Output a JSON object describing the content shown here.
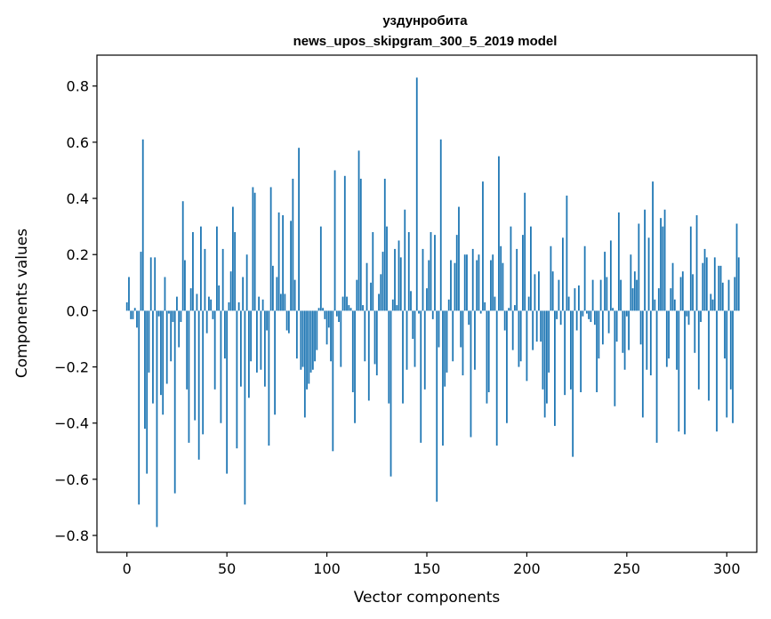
{
  "chart_data": {
    "type": "bar",
    "title": "уздунробита",
    "subtitle": "news_upos_skipgram_300_5_2019 model",
    "xlabel": "Vector components",
    "ylabel": "Components values",
    "xlim": [
      -15,
      315
    ],
    "ylim": [
      -0.86,
      0.91
    ],
    "x_ticks": [
      0,
      50,
      100,
      150,
      200,
      250,
      300
    ],
    "x_tick_labels": [
      "0",
      "50",
      "100",
      "150",
      "200",
      "250",
      "300"
    ],
    "y_ticks": [
      -0.8,
      -0.6,
      -0.4,
      -0.2,
      0.0,
      0.2,
      0.4,
      0.6,
      0.8
    ],
    "y_tick_labels": [
      "−0.8",
      "−0.6",
      "−0.4",
      "−0.2",
      "0.0",
      "0.2",
      "0.4",
      "0.6",
      "0.8"
    ],
    "grid": false,
    "bar_color": "#1f77b4",
    "values": [
      0.03,
      0.12,
      -0.03,
      -0.03,
      0.01,
      -0.06,
      -0.69,
      0.21,
      0.61,
      -0.42,
      -0.58,
      -0.22,
      0.19,
      -0.33,
      0.19,
      -0.77,
      -0.02,
      -0.3,
      -0.37,
      0.12,
      -0.26,
      -0.01,
      -0.18,
      -0.04,
      -0.65,
      0.05,
      -0.13,
      -0.04,
      0.39,
      0.18,
      -0.28,
      -0.47,
      0.08,
      0.28,
      -0.39,
      0.06,
      -0.53,
      0.3,
      -0.44,
      0.22,
      -0.08,
      0.05,
      0.04,
      -0.03,
      -0.28,
      0.3,
      0.09,
      -0.4,
      0.22,
      -0.17,
      -0.58,
      0.03,
      0.14,
      0.37,
      0.28,
      -0.49,
      0.03,
      -0.27,
      0.12,
      -0.69,
      0.2,
      -0.31,
      -0.18,
      0.44,
      0.42,
      -0.22,
      0.05,
      -0.21,
      0.04,
      -0.27,
      -0.07,
      -0.48,
      0.44,
      0.16,
      -0.37,
      0.12,
      0.35,
      0.06,
      0.34,
      0.06,
      -0.07,
      -0.08,
      0.32,
      0.47,
      0.11,
      -0.17,
      0.58,
      -0.21,
      -0.2,
      -0.38,
      -0.28,
      -0.26,
      -0.22,
      -0.21,
      -0.18,
      -0.14,
      0.01,
      0.3,
      0.01,
      -0.03,
      -0.12,
      -0.06,
      -0.18,
      -0.5,
      0.5,
      -0.02,
      -0.04,
      -0.2,
      0.05,
      0.48,
      0.05,
      0.02,
      0.01,
      -0.29,
      -0.4,
      0.11,
      0.57,
      0.47,
      0.02,
      -0.18,
      0.17,
      -0.32,
      0.1,
      0.28,
      -0.19,
      -0.23,
      0.06,
      0.13,
      0.21,
      0.47,
      0.3,
      -0.33,
      -0.59,
      0.04,
      0.22,
      0.02,
      0.25,
      0.19,
      -0.33,
      0.36,
      -0.21,
      0.28,
      0.07,
      -0.1,
      -0.2,
      0.83,
      -0.01,
      -0.47,
      0.22,
      -0.28,
      0.08,
      0.18,
      0.28,
      -0.03,
      0.27,
      -0.68,
      -0.13,
      0.61,
      -0.48,
      -0.27,
      -0.22,
      0.04,
      0.18,
      -0.18,
      0.17,
      0.27,
      0.37,
      -0.13,
      -0.23,
      0.2,
      0.2,
      -0.05,
      -0.45,
      0.22,
      -0.21,
      0.18,
      0.2,
      -0.01,
      0.46,
      0.03,
      -0.33,
      -0.29,
      0.18,
      0.2,
      0.05,
      -0.48,
      0.55,
      0.23,
      0.17,
      -0.07,
      -0.4,
      0.01,
      0.3,
      -0.14,
      0.02,
      0.22,
      -0.2,
      -0.18,
      0.27,
      0.42,
      -0.25,
      0.05,
      0.3,
      -0.14,
      0.13,
      -0.11,
      0.14,
      -0.11,
      -0.28,
      -0.38,
      -0.33,
      -0.22,
      0.23,
      0.14,
      -0.41,
      -0.03,
      0.11,
      -0.05,
      0.26,
      -0.3,
      0.41,
      0.05,
      -0.28,
      -0.52,
      0.08,
      -0.07,
      0.09,
      -0.29,
      -0.02,
      0.23,
      -0.01,
      -0.03,
      -0.04,
      0.11,
      -0.05,
      -0.29,
      -0.17,
      0.11,
      -0.12,
      0.21,
      0.12,
      -0.08,
      0.25,
      0.01,
      -0.34,
      -0.11,
      0.35,
      0.11,
      -0.15,
      -0.21,
      -0.02,
      -0.14,
      0.2,
      0.08,
      0.14,
      0.11,
      0.31,
      -0.12,
      -0.38,
      0.36,
      -0.21,
      0.26,
      -0.23,
      0.46,
      0.04,
      -0.47,
      0.08,
      0.33,
      0.3,
      0.36,
      -0.2,
      -0.17,
      0.08,
      0.17,
      0.04,
      -0.21,
      -0.43,
      0.12,
      0.14,
      -0.44,
      -0.02,
      -0.05,
      0.3,
      0.13,
      -0.15,
      0.34,
      -0.28,
      -0.04,
      0.17,
      0.22,
      0.19,
      -0.32,
      0.06,
      0.04,
      0.19,
      -0.43,
      0.16,
      0.16,
      0.1,
      -0.17,
      -0.38,
      0.11,
      -0.28,
      -0.4,
      0.12,
      0.31,
      0.19
    ]
  }
}
